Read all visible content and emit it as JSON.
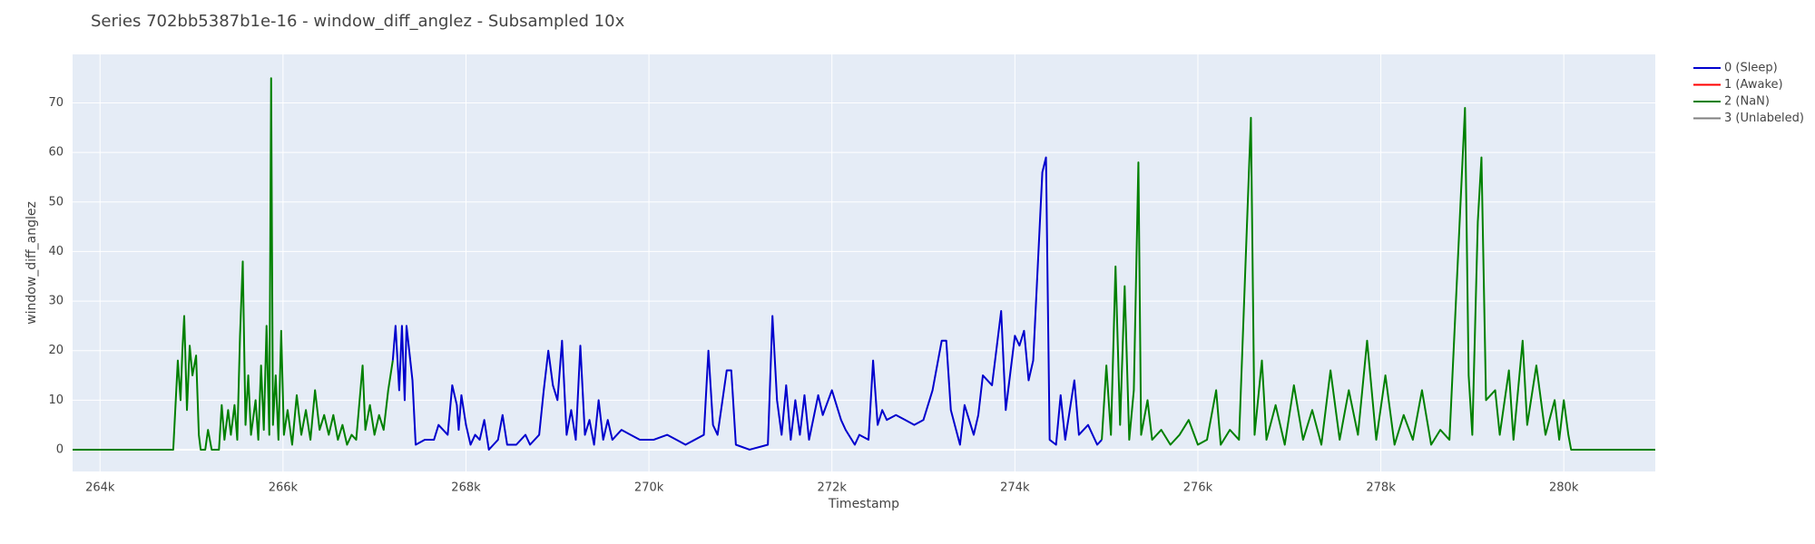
{
  "chart_data": {
    "type": "line",
    "title": "Series 702bb5387b1e-16 - window_diff_anglez - Subsampled 10x",
    "x_label": "Timestamp",
    "y_label": "window_diff_anglez",
    "xlim": [
      263700,
      281000
    ],
    "ylim": [
      -4.4,
      79.8
    ],
    "xticks": [
      {
        "value": 264000,
        "label": "264k"
      },
      {
        "value": 266000,
        "label": "266k"
      },
      {
        "value": 268000,
        "label": "268k"
      },
      {
        "value": 270000,
        "label": "270k"
      },
      {
        "value": 272000,
        "label": "272k"
      },
      {
        "value": 274000,
        "label": "274k"
      },
      {
        "value": 276000,
        "label": "276k"
      },
      {
        "value": 278000,
        "label": "278k"
      },
      {
        "value": 280000,
        "label": "280k"
      }
    ],
    "yticks": [
      0,
      10,
      20,
      30,
      40,
      50,
      60,
      70
    ],
    "grid": true,
    "legend": "right",
    "series": [
      {
        "name": "0 (Sleep)",
        "color": "#0000cd",
        "x": [
          267200,
          267230,
          267270,
          267300,
          267330,
          267350,
          267415,
          267450,
          267550,
          267650,
          267700,
          267800,
          267850,
          267900,
          267920,
          267950,
          268000,
          268050,
          268100,
          268150,
          268200,
          268250,
          268300,
          268350,
          268400,
          268450,
          268550,
          268650,
          268700,
          268800,
          268850,
          268900,
          268950,
          269000,
          269050,
          269100,
          269150,
          269200,
          269250,
          269300,
          269350,
          269400,
          269450,
          269500,
          269550,
          269600,
          269700,
          269800,
          269900,
          270050,
          270200,
          270300,
          270400,
          270600,
          270650,
          270700,
          270750,
          270850,
          270900,
          270950,
          271100,
          271300,
          271350,
          271400,
          271450,
          271500,
          271550,
          271600,
          271650,
          271700,
          271750,
          271850,
          271900,
          272000,
          272100,
          272150,
          272250,
          272300,
          272400,
          272450,
          272500,
          272550,
          272600,
          272700,
          272800,
          272900,
          273000,
          273100,
          273200,
          273250,
          273300,
          273400,
          273450,
          273550,
          273600,
          273650,
          273750,
          273850,
          273900,
          274000,
          274050,
          274100,
          274150,
          274200,
          274300,
          274340,
          274380,
          274450,
          274500,
          274550,
          274650,
          274700,
          274800,
          274900,
          274950
        ],
        "values": [
          18,
          25,
          12,
          25,
          10,
          25,
          14,
          1,
          2,
          2,
          5,
          3,
          13,
          9,
          4,
          11,
          5,
          1,
          3,
          2,
          6,
          0,
          1,
          2,
          7,
          1,
          1,
          3,
          1,
          3,
          12,
          20,
          13,
          10,
          22,
          3,
          8,
          2,
          21,
          3,
          6,
          1,
          10,
          2,
          6,
          2,
          4,
          3,
          2,
          2,
          3,
          2,
          1,
          3,
          20,
          5,
          3,
          16,
          16,
          1,
          0,
          1,
          27,
          10,
          3,
          13,
          2,
          10,
          3,
          11,
          2,
          11,
          7,
          12,
          6,
          4,
          1,
          3,
          2,
          18,
          5,
          8,
          6,
          7,
          6,
          5,
          6,
          12,
          22,
          22,
          8,
          1,
          9,
          3,
          7,
          15,
          13,
          28,
          8,
          23,
          21,
          24,
          14,
          18,
          56,
          59,
          2,
          1,
          11,
          2,
          14,
          3,
          5,
          1,
          2
        ]
      },
      {
        "name": "1 (Awake)",
        "color": "#ff0000",
        "x": [],
        "values": []
      },
      {
        "name": "2 (NaN)",
        "color": "#008000",
        "x": [
          263700,
          264800,
          264850,
          264880,
          264900,
          264920,
          264950,
          264980,
          265010,
          265050,
          265080,
          265100,
          265150,
          265180,
          265220,
          265300,
          265330,
          265360,
          265400,
          265430,
          265470,
          265500,
          265530,
          265560,
          265590,
          265620,
          265650,
          265700,
          265730,
          265760,
          265790,
          265820,
          265850,
          265870,
          265890,
          265920,
          265950,
          265980,
          266010,
          266050,
          266100,
          266150,
          266200,
          266250,
          266300,
          266350,
          266400,
          266450,
          266500,
          266550,
          266600,
          266650,
          266700,
          266750,
          266800,
          266870,
          266900,
          266950,
          267000,
          267050,
          267100,
          267150,
          267200,
          271000,
          274950,
          275000,
          275050,
          275100,
          275150,
          275200,
          275250,
          275300,
          275350,
          275380,
          275450,
          275500,
          275600,
          275700,
          275800,
          275900,
          276000,
          276100,
          276200,
          276250,
          276350,
          276450,
          276580,
          276620,
          276700,
          276750,
          276850,
          276950,
          277050,
          277150,
          277250,
          277350,
          277450,
          277550,
          277650,
          277750,
          277850,
          277950,
          278050,
          278150,
          278250,
          278350,
          278450,
          278550,
          278650,
          278750,
          278920,
          278960,
          279000,
          279060,
          279100,
          279150,
          279250,
          279300,
          279400,
          279450,
          279550,
          279600,
          279700,
          279800,
          279900,
          279950,
          280000,
          280050,
          280080,
          281000
        ],
        "values": [
          0,
          0,
          18,
          10,
          20,
          27,
          8,
          21,
          15,
          19,
          3,
          0,
          0,
          4,
          0,
          0,
          9,
          2,
          8,
          3,
          9,
          2,
          23,
          38,
          5,
          15,
          3,
          10,
          2,
          17,
          4,
          25,
          3,
          75,
          5,
          15,
          2,
          24,
          3,
          8,
          1,
          11,
          3,
          8,
          2,
          12,
          4,
          7,
          3,
          7,
          2,
          5,
          1,
          3,
          2,
          17,
          4,
          9,
          3,
          7,
          4,
          12,
          18,
          null,
          2,
          17,
          3,
          37,
          5,
          33,
          2,
          12,
          58,
          3,
          10,
          2,
          4,
          1,
          3,
          6,
          1,
          2,
          12,
          1,
          4,
          2,
          67,
          3,
          18,
          2,
          9,
          1,
          13,
          2,
          8,
          1,
          16,
          2,
          12,
          3,
          22,
          2,
          15,
          1,
          7,
          2,
          12,
          1,
          4,
          2,
          69,
          15,
          3,
          46,
          59,
          10,
          12,
          3,
          16,
          2,
          22,
          5,
          17,
          3,
          10,
          2,
          10,
          3,
          0,
          0
        ]
      },
      {
        "name": "3 (Unlabeled)",
        "color": "#808080",
        "x": [],
        "values": []
      }
    ]
  }
}
